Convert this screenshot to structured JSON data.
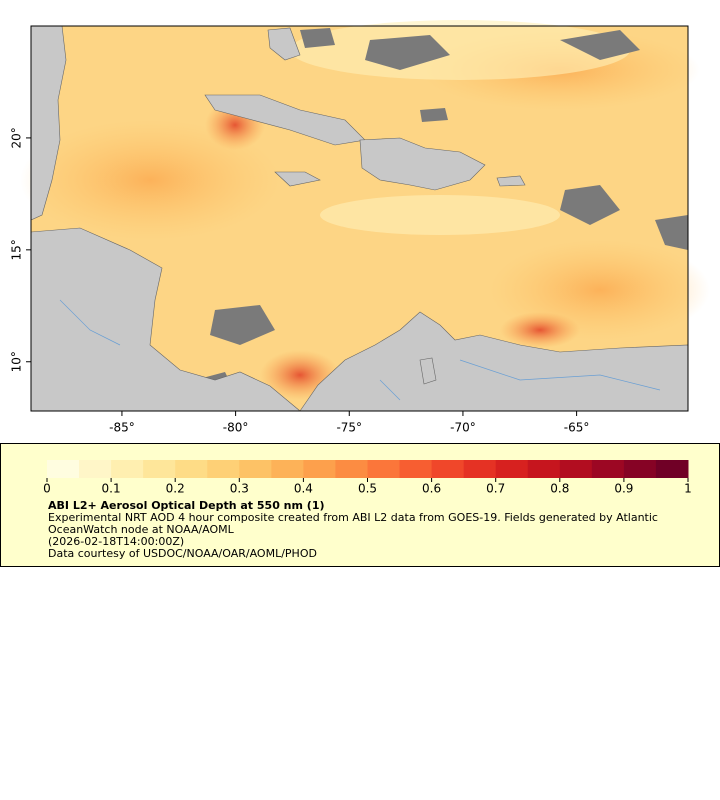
{
  "map": {
    "xlim": [
      -89,
      -60.1
    ],
    "ylim": [
      7.8,
      25
    ],
    "xticks": [
      {
        "value": -85,
        "label": "-85°"
      },
      {
        "value": -80,
        "label": "-80°"
      },
      {
        "value": -75,
        "label": "-75°"
      },
      {
        "value": -70,
        "label": "-70°"
      },
      {
        "value": -65,
        "label": "-65°"
      }
    ],
    "yticks": [
      {
        "value": 10,
        "label": "10°"
      },
      {
        "value": 15,
        "label": "15°"
      },
      {
        "value": 20,
        "label": "20°"
      }
    ]
  },
  "colorbar": {
    "lim": [
      0,
      1
    ],
    "ticks": [
      0,
      0.1,
      0.2,
      0.3,
      0.4,
      0.5,
      0.6,
      0.7,
      0.8,
      0.9,
      1
    ],
    "colors": [
      "#fffde0",
      "#fff6c8",
      "#ffefb0",
      "#fee69a",
      "#fedc86",
      "#fed076",
      "#fdc266",
      "#fdb258",
      "#fda04c",
      "#fc8c42",
      "#fb763a",
      "#f75e31",
      "#f0472a",
      "#e53224",
      "#d7211f",
      "#c6151e",
      "#b20d20",
      "#9c0723",
      "#860325",
      "#700026"
    ],
    "title": "ABI L2+ Aerosol Optical Depth at 550 nm (1)",
    "description": "Experimental NRT AOD 4 hour composite created from ABI L2 data from GOES-19. Fields generated by Atlantic OceanWatch node at NOAA/AOML",
    "time": "(2026-02-18T14:00:00Z)",
    "credit": "Data courtesy of USDOC/NOAA/OAR/AOML/PHOD"
  }
}
